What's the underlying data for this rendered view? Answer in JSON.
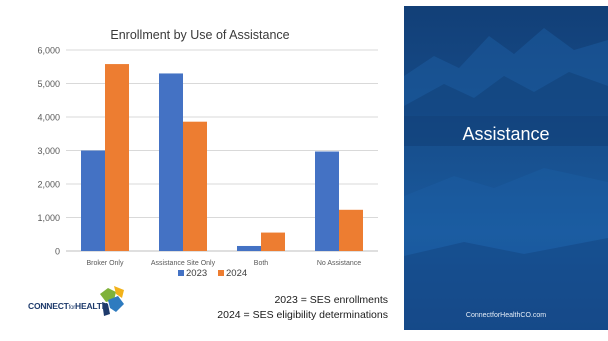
{
  "chart_data": {
    "type": "bar",
    "title": "Enrollment by Use of Assistance",
    "categories": [
      "Broker Only",
      "Assistance Site Only",
      "Both",
      "No Assistance"
    ],
    "series": [
      {
        "name": "2023",
        "color": "#4472c4",
        "values": [
          3000,
          5300,
          150,
          2970
        ]
      },
      {
        "name": "2024",
        "color": "#ed7d31",
        "values": [
          5580,
          3860,
          550,
          1230
        ]
      }
    ],
    "yticks": [
      "0",
      "1,000",
      "2,000",
      "3,000",
      "4,000",
      "5,000",
      "6,000"
    ],
    "ylim": [
      0,
      6000
    ],
    "grid": true,
    "legend_position": "bottom"
  },
  "notes": {
    "line1": "2023 = SES enrollments",
    "line2": "2024 = SES eligibility determinations"
  },
  "logo": {
    "text": "CONNECT for HEALTH COLORADO"
  },
  "side_panel": {
    "title": "Assistance",
    "url": "ConnectforHealthCO.com",
    "color": "#17508f"
  }
}
